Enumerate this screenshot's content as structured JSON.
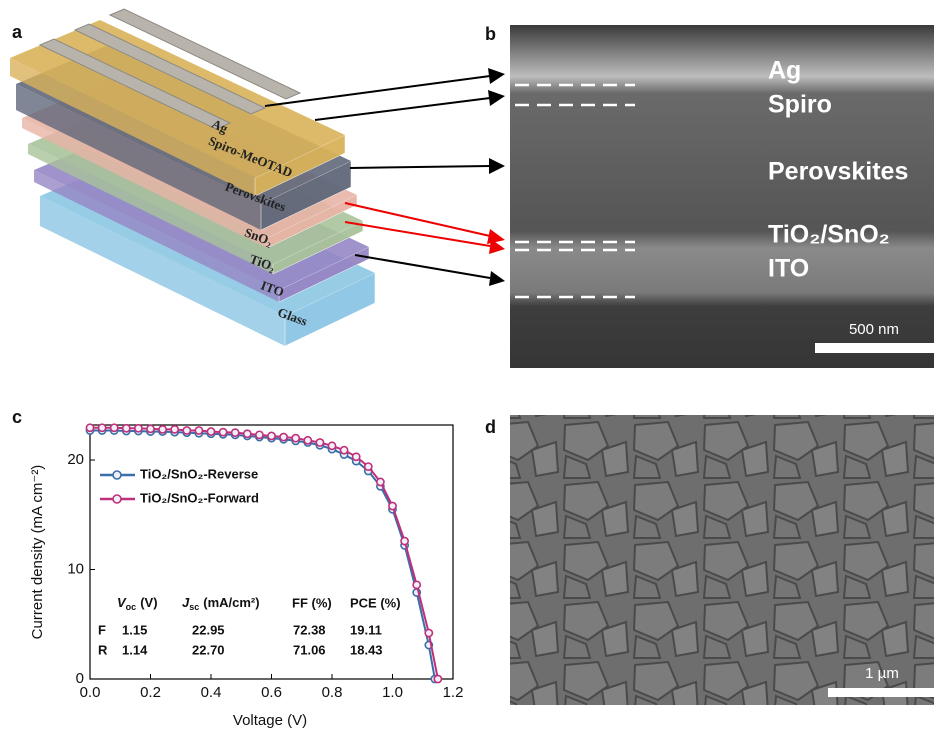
{
  "panels": {
    "a": {
      "label": "a",
      "electrode": "Ag",
      "layers": [
        "Spiro-MeOTAD",
        "Perovskites",
        "SnO₂",
        "TiO₂",
        "ITO",
        "Glass"
      ]
    },
    "b": {
      "label": "b",
      "layers": [
        "Ag",
        "Spiro",
        "Perovskites",
        "TiO₂/SnO₂",
        "ITO"
      ],
      "scale_bar": "500 nm"
    },
    "d": {
      "label": "d",
      "scale_bar": "1 µm"
    }
  },
  "chart_data": {
    "type": "line",
    "panel_label": "c",
    "x_label": "Voltage (V)",
    "y_label": "Current density (mA cm⁻²)",
    "xlim": [
      0,
      1.2
    ],
    "ylim": [
      0,
      23.2
    ],
    "xticks": [
      {
        "value": 0,
        "label": "0.0"
      },
      0.2,
      0.4,
      0.6,
      0.8,
      {
        "value": 1,
        "label": "1.0"
      },
      1.2
    ],
    "yticks": [
      0,
      10,
      20
    ],
    "series": [
      {
        "name": "TiO₂/SnO₂-Reverse",
        "color": "#3a6ea8",
        "x": [
          0,
          0.04,
          0.08,
          0.12,
          0.16,
          0.2,
          0.24,
          0.28,
          0.32,
          0.36,
          0.4,
          0.44,
          0.48,
          0.52,
          0.56,
          0.6,
          0.64,
          0.68,
          0.72,
          0.76,
          0.8,
          0.84,
          0.88,
          0.92,
          0.96,
          1.0,
          1.04,
          1.08,
          1.12,
          1.14
        ],
        "values": [
          22.7,
          22.7,
          22.7,
          22.65,
          22.65,
          22.6,
          22.6,
          22.55,
          22.5,
          22.45,
          22.4,
          22.35,
          22.3,
          22.2,
          22.1,
          22.0,
          21.9,
          21.75,
          21.6,
          21.35,
          21.0,
          20.5,
          19.9,
          19.0,
          17.6,
          15.5,
          12.2,
          7.9,
          3.1,
          0
        ]
      },
      {
        "name": "TiO₂/SnO₂-Forward",
        "color": "#c0307a",
        "x": [
          0,
          0.04,
          0.08,
          0.12,
          0.16,
          0.2,
          0.24,
          0.28,
          0.32,
          0.36,
          0.4,
          0.44,
          0.48,
          0.52,
          0.56,
          0.6,
          0.64,
          0.68,
          0.72,
          0.76,
          0.8,
          0.84,
          0.88,
          0.92,
          0.96,
          1.0,
          1.04,
          1.08,
          1.12,
          1.15
        ],
        "values": [
          22.95,
          22.95,
          22.95,
          22.9,
          22.9,
          22.85,
          22.8,
          22.8,
          22.7,
          22.7,
          22.6,
          22.55,
          22.5,
          22.4,
          22.3,
          22.2,
          22.1,
          22.0,
          21.8,
          21.6,
          21.3,
          20.9,
          20.3,
          19.4,
          18.0,
          15.8,
          12.6,
          8.6,
          4.2,
          0
        ]
      }
    ],
    "table": {
      "header": [
        {
          "symbol": "V",
          "sub": "oc",
          "unit": "(V)"
        },
        {
          "symbol": "J",
          "sub": "sc",
          "unit": "(mA/cm²)"
        },
        "FF (%)",
        "PCE (%)"
      ],
      "rows": [
        [
          "F",
          "1.15",
          "22.95",
          "72.38",
          "19.11"
        ],
        [
          "R",
          "1.14",
          "22.70",
          "71.06",
          "18.43"
        ]
      ]
    }
  }
}
